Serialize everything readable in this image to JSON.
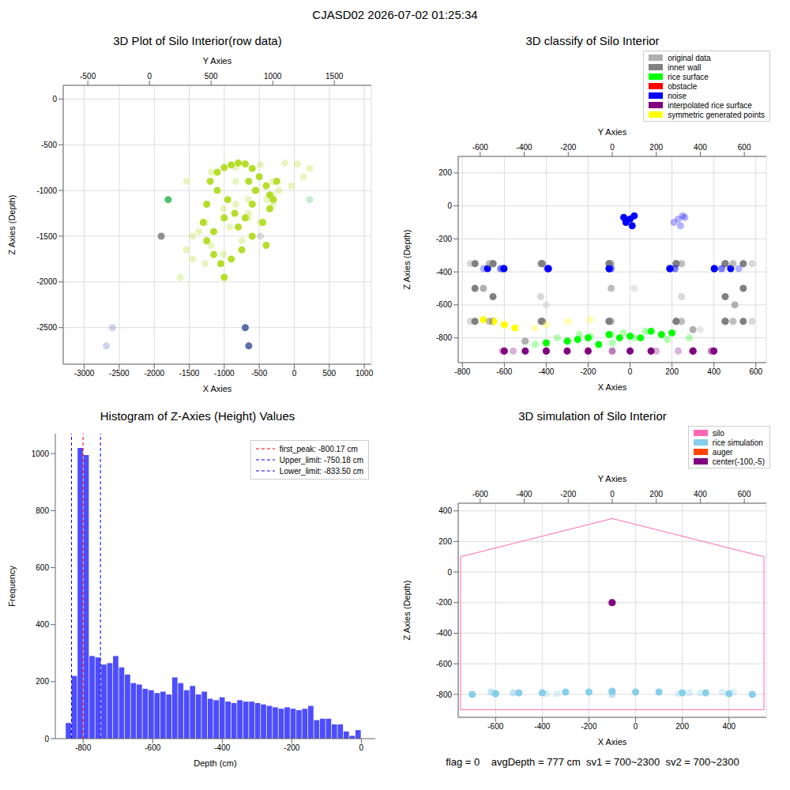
{
  "title": "CJASD02 2026-07-02 01:25:34",
  "chart_data": [
    {
      "type": "scatter3d",
      "title": "3D Plot of Silo Interior(row data)",
      "x_label": "X Axies",
      "y_label": "Y Axies",
      "z_label": "Z Axies (Depth)",
      "xlim": [
        -3300,
        1100
      ],
      "xticks": [
        -3000,
        -2500,
        -2000,
        -1500,
        -1000,
        -500,
        0,
        500,
        1000
      ],
      "ylim": [
        -700,
        1800
      ],
      "yticks": [
        -500,
        0,
        500,
        1000,
        1500
      ],
      "zlim": [
        -2900,
        150
      ],
      "zticks": [
        -2500,
        -2000,
        -1500,
        -1000,
        -500,
        0
      ],
      "grid": true,
      "series": [
        {
          "color": "#b5de2b",
          "points": [
            [
              -1200,
              300,
              -900
            ],
            [
              -1100,
              500,
              -800
            ],
            [
              -1000,
              700,
              -750
            ],
            [
              -900,
              900,
              -720
            ],
            [
              -800,
              1100,
              -700
            ],
            [
              -700,
              1200,
              -710
            ],
            [
              -600,
              1300,
              -760
            ],
            [
              -500,
              1250,
              -850
            ],
            [
              -400,
              1150,
              -950
            ],
            [
              -350,
              1000,
              -1050
            ],
            [
              -300,
              800,
              -1100
            ],
            [
              -350,
              600,
              -1200
            ],
            [
              -450,
              450,
              -1350
            ],
            [
              -600,
              350,
              -1500
            ],
            [
              -750,
              300,
              -1650
            ],
            [
              -900,
              350,
              -1750
            ],
            [
              -1050,
              450,
              -1800
            ],
            [
              -1150,
              600,
              -1700
            ],
            [
              -1250,
              750,
              -1550
            ],
            [
              -1300,
              900,
              -1350
            ],
            [
              -1250,
              1000,
              -1150
            ],
            [
              -1100,
              1050,
              -1000
            ],
            [
              -950,
              950,
              -1100
            ],
            [
              -850,
              800,
              -1250
            ],
            [
              -800,
              650,
              -1400
            ],
            [
              -700,
              600,
              -1300
            ],
            [
              -600,
              700,
              -1150
            ],
            [
              -550,
              850,
              -1000
            ],
            [
              -650,
              1000,
              -900
            ],
            [
              -1000,
              800,
              -1300
            ],
            [
              -1150,
              400,
              -1450
            ],
            [
              -400,
              500,
              -1600
            ],
            [
              -250,
              700,
              -900
            ],
            [
              -1000,
              250,
              -1950
            ]
          ]
        },
        {
          "color": "#4ac16d",
          "points": [
            [
              -1800,
              1300,
              -1100
            ]
          ]
        },
        {
          "color": "#8f8f8f",
          "points": [
            [
              -1900,
              900,
              -1500
            ]
          ]
        },
        {
          "color": "#5b6fa8",
          "points": [
            [
              -700,
              -300,
              -2500
            ],
            [
              -650,
              -350,
              -2700
            ]
          ]
        }
      ]
    },
    {
      "type": "scatter3d",
      "title": "3D classify of Silo Interior",
      "x_label": "X Axies",
      "y_label": "Y Axies",
      "z_label": "Z Axies (Depth)",
      "xlim": [
        -820,
        650
      ],
      "xticks": [
        -800,
        -600,
        -400,
        -200,
        0,
        200,
        400,
        600
      ],
      "ylim": [
        -700,
        700
      ],
      "yticks": [
        -600,
        -400,
        -200,
        0,
        200,
        400,
        600
      ],
      "zlim": [
        -950,
        300
      ],
      "zticks": [
        -800,
        -600,
        -400,
        -200,
        0,
        200
      ],
      "grid": true,
      "legend": "upper right",
      "series": [
        {
          "name": "original data",
          "color": "#b0b0b0",
          "points": [
            [
              -700,
              100,
              -500
            ],
            [
              500,
              -300,
              -600
            ],
            [
              300,
              400,
              -750
            ],
            [
              -500,
              -400,
              -820
            ]
          ]
        },
        {
          "name": "inner wall",
          "color": "#808080",
          "points": [
            [
              540,
              -5,
              -350
            ],
            [
              454,
              315,
              -350
            ],
            [
              220,
              549,
              -350
            ],
            [
              -100,
              635,
              -350
            ],
            [
              -420,
              549,
              -350
            ],
            [
              -654,
              315,
              -350
            ],
            [
              -740,
              -5,
              -350
            ],
            [
              -654,
              -325,
              -350
            ],
            [
              -420,
              -559,
              -350
            ],
            [
              -100,
              -645,
              -350
            ],
            [
              220,
              -559,
              -350
            ],
            [
              454,
              -325,
              -350
            ],
            [
              540,
              -5,
              -700
            ],
            [
              454,
              315,
              -700
            ],
            [
              220,
              549,
              -700
            ],
            [
              -100,
              635,
              -700
            ],
            [
              -420,
              549,
              -700
            ],
            [
              -654,
              315,
              -700
            ],
            [
              -740,
              -5,
              -700
            ],
            [
              -654,
              -325,
              -700
            ],
            [
              -420,
              -559,
              -700
            ],
            [
              -100,
              -645,
              -700
            ],
            [
              220,
              -559,
              -700
            ],
            [
              454,
              -325,
              -700
            ],
            [
              540,
              -5,
              -500
            ],
            [
              -740,
              -5,
              -500
            ],
            [
              -654,
              315,
              -550
            ],
            [
              454,
              -325,
              -550
            ]
          ]
        },
        {
          "name": "rice surface",
          "color": "#00ff00",
          "points": [
            [
              -100,
              -5,
              -780
            ],
            [
              -200,
              100,
              -800
            ],
            [
              0,
              -100,
              -790
            ],
            [
              -300,
              -200,
              -820
            ],
            [
              100,
              150,
              -760
            ],
            [
              -250,
              250,
              -810
            ],
            [
              50,
              -250,
              -800
            ],
            [
              -400,
              0,
              -830
            ],
            [
              200,
              50,
              -770
            ],
            [
              -150,
              -350,
              -840
            ],
            [
              -50,
              350,
              -800
            ],
            [
              150,
              -150,
              -780
            ]
          ]
        },
        {
          "name": "obstacle",
          "color": "#ff0000",
          "points": []
        },
        {
          "name": "noise",
          "color": "#0000ff",
          "points": [
            [
              480,
              -5,
              -380
            ],
            [
              402,
              285,
              -380
            ],
            [
              190,
              497,
              -380
            ],
            [
              -100,
              575,
              -380
            ],
            [
              -390,
              497,
              -380
            ],
            [
              -602,
              285,
              -380
            ],
            [
              -680,
              -5,
              -380
            ],
            [
              -602,
              -295,
              -380
            ],
            [
              -390,
              -507,
              -380
            ],
            [
              -100,
              -585,
              -380
            ],
            [
              190,
              -507,
              -380
            ],
            [
              402,
              -295,
              -380
            ],
            [
              0,
              300,
              -80
            ],
            [
              20,
              320,
              -60
            ],
            [
              -20,
              280,
              -100
            ],
            [
              10,
              310,
              -120
            ],
            [
              -30,
              330,
              -70
            ]
          ]
        },
        {
          "name": "interpolated rice surface",
          "color": "#800080",
          "points": [
            [
              -500,
              -300,
              -880
            ],
            [
              -300,
              -500,
              -880
            ],
            [
              0,
              -450,
              -880
            ],
            [
              300,
              -300,
              -880
            ],
            [
              400,
              0,
              -880
            ],
            [
              300,
              300,
              -880
            ],
            [
              -600,
              200,
              -880
            ],
            [
              -400,
              450,
              -880
            ],
            [
              100,
              450,
              -880
            ],
            [
              -200,
              0,
              -880
            ]
          ]
        },
        {
          "name": "symmetric generated points",
          "color": "#ffff00",
          "points": [
            [
              -650,
              -200,
              -700
            ],
            [
              -600,
              -300,
              -720
            ],
            [
              -700,
              -100,
              -690
            ],
            [
              -550,
              -350,
              -740
            ]
          ]
        }
      ]
    },
    {
      "type": "histogram",
      "title": "Histogram of Z-Axies (Height) Values",
      "x_label": "Depth (cm)",
      "y_label": "Frequency",
      "xlim": [
        -880,
        40
      ],
      "xticks": [
        -800,
        -600,
        -400,
        -200,
        0
      ],
      "ylim": [
        0,
        1070
      ],
      "yticks": [
        0,
        200,
        400,
        600,
        800,
        1000
      ],
      "color": "#4d4dff",
      "grid": false,
      "legend": "upper right",
      "bins": [
        -850,
        -833,
        -816,
        -799,
        -782,
        -765,
        -748,
        -731,
        -714,
        -697,
        -680,
        -663,
        -646,
        -629,
        -612,
        -595,
        -578,
        -561,
        -544,
        -527,
        -510,
        -493,
        -476,
        -459,
        -442,
        -425,
        -408,
        -391,
        -374,
        -357,
        -340,
        -323,
        -306,
        -289,
        -272,
        -255,
        -238,
        -221,
        -204,
        -187,
        -170,
        -153,
        -136,
        -119,
        -102,
        -85,
        -68,
        -51,
        -34,
        -17,
        0
      ],
      "values": [
        55,
        220,
        1020,
        995,
        290,
        285,
        260,
        265,
        290,
        250,
        225,
        195,
        190,
        175,
        170,
        160,
        165,
        155,
        215,
        195,
        170,
        185,
        155,
        165,
        140,
        135,
        145,
        130,
        125,
        135,
        130,
        130,
        125,
        120,
        115,
        110,
        105,
        110,
        105,
        100,
        105,
        115,
        65,
        70,
        70,
        50,
        50,
        25,
        10,
        30
      ],
      "vlines": [
        {
          "label": "first_peak: -800.17 cm",
          "value": -800.17,
          "color": "#ff0000"
        },
        {
          "label": "Upper_limit: -750.18 cm",
          "value": -750.18,
          "color": "#0000ff"
        },
        {
          "label": "Lower_limit: -833.50 cm",
          "value": -833.5,
          "color": "#0000ff"
        }
      ]
    },
    {
      "type": "scatter3d",
      "title": "3D simulation of Silo Interior",
      "x_label": "X Axies",
      "y_label": "Y Axies",
      "z_label": "Z Axies (Depth)",
      "xlim": [
        -760,
        560
      ],
      "xticks": [
        -600,
        -400,
        -200,
        0,
        200,
        400
      ],
      "ylim": [
        -700,
        700
      ],
      "yticks": [
        -600,
        -400,
        -200,
        0,
        200,
        400,
        600
      ],
      "zlim": [
        -950,
        450
      ],
      "zticks": [
        -800,
        -600,
        -400,
        -200,
        0,
        200,
        400
      ],
      "grid": true,
      "legend": "upper right",
      "annotation": "flag = 0    avgDepth = 777 cm  sv1 = 700~2300  sv2 = 700~2300",
      "series": [
        {
          "name": "silo",
          "color": "#ff69b4",
          "type": "line",
          "points": [
            [
              -750,
              -5,
              -900
            ],
            [
              -750,
              -5,
              100
            ],
            [
              -100,
              -5,
              350
            ],
            [
              550,
              -5,
              100
            ],
            [
              550,
              -5,
              -900
            ],
            [
              -750,
              -5,
              -900
            ]
          ]
        },
        {
          "name": "rice simulation",
          "color": "#87ceeb",
          "points": [
            [
              -700,
              0,
              -800
            ],
            [
              -600,
              -300,
              -795
            ],
            [
              -600,
              300,
              -795
            ],
            [
              -500,
              -450,
              -790
            ],
            [
              -400,
              400,
              -790
            ],
            [
              -300,
              -550,
              -785
            ],
            [
              -200,
              550,
              -785
            ],
            [
              -100,
              -5,
              -780
            ],
            [
              0,
              -550,
              -785
            ],
            [
              100,
              500,
              -785
            ],
            [
              200,
              -450,
              -790
            ],
            [
              300,
              350,
              -790
            ],
            [
              400,
              -250,
              -795
            ],
            [
              500,
              0,
              -800
            ]
          ]
        },
        {
          "name": "auger",
          "color": "#ff4500",
          "points": []
        },
        {
          "name": "center(-100,-5)",
          "color": "#800080",
          "points": [
            [
              -100,
              -5,
              -200
            ]
          ]
        }
      ]
    }
  ]
}
